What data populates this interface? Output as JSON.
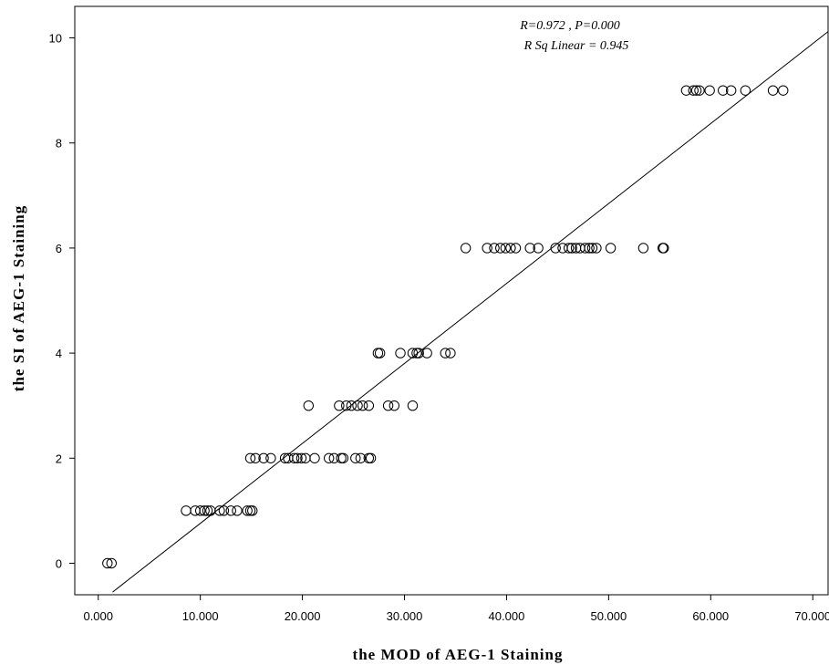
{
  "chart_data": {
    "type": "scatter",
    "xlabel": "the MOD of AEG-1 Staining",
    "ylabel": "the SI of AEG-1 Staining",
    "xlim": [
      -2.3,
      71.5
    ],
    "ylim": [
      -0.6,
      10.6
    ],
    "x_ticks": [
      0,
      10,
      20,
      30,
      40,
      50,
      60,
      70
    ],
    "x_tick_labels": [
      "0.000",
      "10.000",
      "20.000",
      "30.000",
      "40.000",
      "50.000",
      "60.000",
      "70.000"
    ],
    "y_ticks": [
      0,
      2,
      4,
      6,
      8,
      10
    ],
    "y_tick_labels": [
      "0",
      "2",
      "4",
      "6",
      "8",
      "10"
    ],
    "annotations": [
      "R=0.972 , P=0.000",
      "R Sq Linear = 0.945"
    ],
    "fit_line": {
      "x": [
        1.4,
        71.5
      ],
      "y": [
        -0.55,
        10.12
      ]
    },
    "grid": false,
    "points": [
      {
        "x": 0.9,
        "y": 0
      },
      {
        "x": 1.3,
        "y": 0
      },
      {
        "x": 8.6,
        "y": 1
      },
      {
        "x": 9.5,
        "y": 1
      },
      {
        "x": 10.0,
        "y": 1
      },
      {
        "x": 10.4,
        "y": 1
      },
      {
        "x": 10.7,
        "y": 1
      },
      {
        "x": 11.0,
        "y": 1
      },
      {
        "x": 11.9,
        "y": 1
      },
      {
        "x": 12.3,
        "y": 1
      },
      {
        "x": 13.0,
        "y": 1
      },
      {
        "x": 13.6,
        "y": 1
      },
      {
        "x": 14.6,
        "y": 1
      },
      {
        "x": 14.9,
        "y": 1
      },
      {
        "x": 15.1,
        "y": 1
      },
      {
        "x": 14.9,
        "y": 2
      },
      {
        "x": 15.4,
        "y": 2
      },
      {
        "x": 16.2,
        "y": 2
      },
      {
        "x": 16.9,
        "y": 2
      },
      {
        "x": 18.3,
        "y": 2
      },
      {
        "x": 18.6,
        "y": 2
      },
      {
        "x": 19.2,
        "y": 2
      },
      {
        "x": 19.5,
        "y": 2
      },
      {
        "x": 19.9,
        "y": 2
      },
      {
        "x": 20.3,
        "y": 2
      },
      {
        "x": 21.2,
        "y": 2
      },
      {
        "x": 22.6,
        "y": 2
      },
      {
        "x": 23.1,
        "y": 2
      },
      {
        "x": 23.8,
        "y": 2
      },
      {
        "x": 24.0,
        "y": 2
      },
      {
        "x": 25.2,
        "y": 2
      },
      {
        "x": 25.7,
        "y": 2
      },
      {
        "x": 26.5,
        "y": 2
      },
      {
        "x": 26.7,
        "y": 2
      },
      {
        "x": 20.6,
        "y": 3
      },
      {
        "x": 23.6,
        "y": 3
      },
      {
        "x": 24.3,
        "y": 3
      },
      {
        "x": 24.8,
        "y": 3
      },
      {
        "x": 25.4,
        "y": 3
      },
      {
        "x": 25.9,
        "y": 3
      },
      {
        "x": 26.5,
        "y": 3
      },
      {
        "x": 28.4,
        "y": 3
      },
      {
        "x": 29.0,
        "y": 3
      },
      {
        "x": 30.8,
        "y": 3
      },
      {
        "x": 27.4,
        "y": 4
      },
      {
        "x": 27.6,
        "y": 4
      },
      {
        "x": 29.6,
        "y": 4
      },
      {
        "x": 30.8,
        "y": 4
      },
      {
        "x": 31.2,
        "y": 4
      },
      {
        "x": 31.4,
        "y": 4
      },
      {
        "x": 32.2,
        "y": 4
      },
      {
        "x": 34.0,
        "y": 4
      },
      {
        "x": 34.5,
        "y": 4
      },
      {
        "x": 36.0,
        "y": 6
      },
      {
        "x": 38.1,
        "y": 6
      },
      {
        "x": 38.8,
        "y": 6
      },
      {
        "x": 39.4,
        "y": 6
      },
      {
        "x": 39.9,
        "y": 6
      },
      {
        "x": 40.4,
        "y": 6
      },
      {
        "x": 40.9,
        "y": 6
      },
      {
        "x": 42.3,
        "y": 6
      },
      {
        "x": 43.1,
        "y": 6
      },
      {
        "x": 44.8,
        "y": 6
      },
      {
        "x": 45.5,
        "y": 6
      },
      {
        "x": 46.1,
        "y": 6
      },
      {
        "x": 46.4,
        "y": 6
      },
      {
        "x": 46.8,
        "y": 6
      },
      {
        "x": 47.2,
        "y": 6
      },
      {
        "x": 47.7,
        "y": 6
      },
      {
        "x": 48.1,
        "y": 6
      },
      {
        "x": 48.4,
        "y": 6
      },
      {
        "x": 48.8,
        "y": 6
      },
      {
        "x": 50.2,
        "y": 6
      },
      {
        "x": 53.4,
        "y": 6
      },
      {
        "x": 55.3,
        "y": 6
      },
      {
        "x": 55.4,
        "y": 6
      },
      {
        "x": 57.6,
        "y": 9
      },
      {
        "x": 58.3,
        "y": 9
      },
      {
        "x": 58.6,
        "y": 9
      },
      {
        "x": 58.9,
        "y": 9
      },
      {
        "x": 59.9,
        "y": 9
      },
      {
        "x": 61.2,
        "y": 9
      },
      {
        "x": 62.0,
        "y": 9
      },
      {
        "x": 63.4,
        "y": 9
      },
      {
        "x": 66.1,
        "y": 9
      },
      {
        "x": 67.1,
        "y": 9
      }
    ]
  }
}
